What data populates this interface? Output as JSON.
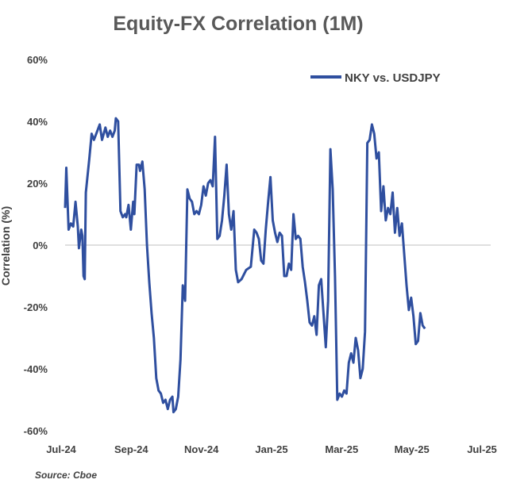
{
  "chart_data": {
    "type": "line",
    "title": "Equity-FX Correlation (1M)",
    "xlabel": "",
    "ylabel": "Correlation (%)",
    "x_tick_labels": [
      "Jul-24",
      "Sep-24",
      "Nov-24",
      "Jan-25",
      "Mar-25",
      "May-25",
      "Jul-25"
    ],
    "y_ticks": [
      -60,
      -40,
      -20,
      0,
      20,
      40,
      60
    ],
    "y_tick_labels": [
      "-60%",
      "-40%",
      "-20%",
      "0%",
      "20%",
      "40%",
      "60%"
    ],
    "ylim": [
      -60,
      60
    ],
    "xlim": [
      "2024-07-01",
      "2025-07-05"
    ],
    "legend_position": "top-right",
    "grid": false,
    "series": [
      {
        "name": "NKY vs. USDJPY",
        "color": "#2F4F9F",
        "points": [
          [
            "2024-07-01",
            12
          ],
          [
            "2024-07-02",
            25
          ],
          [
            "2024-07-04",
            5
          ],
          [
            "2024-07-06",
            7
          ],
          [
            "2024-07-08",
            6
          ],
          [
            "2024-07-10",
            14
          ],
          [
            "2024-07-12",
            6
          ],
          [
            "2024-07-13",
            -1
          ],
          [
            "2024-07-15",
            5
          ],
          [
            "2024-07-16",
            3
          ],
          [
            "2024-07-17",
            -10
          ],
          [
            "2024-07-18",
            -11
          ],
          [
            "2024-07-19",
            17
          ],
          [
            "2024-07-22",
            28
          ],
          [
            "2024-07-24",
            36
          ],
          [
            "2024-07-26",
            34
          ],
          [
            "2024-07-29",
            37
          ],
          [
            "2024-07-31",
            39
          ],
          [
            "2024-08-02",
            34
          ],
          [
            "2024-08-05",
            38
          ],
          [
            "2024-08-07",
            35
          ],
          [
            "2024-08-09",
            37
          ],
          [
            "2024-08-11",
            35
          ],
          [
            "2024-08-13",
            37
          ],
          [
            "2024-08-14",
            41
          ],
          [
            "2024-08-16",
            40
          ],
          [
            "2024-08-18",
            11
          ],
          [
            "2024-08-20",
            9
          ],
          [
            "2024-08-22",
            10
          ],
          [
            "2024-08-23",
            9
          ],
          [
            "2024-08-25",
            13
          ],
          [
            "2024-08-27",
            5
          ],
          [
            "2024-08-29",
            14
          ],
          [
            "2024-08-30",
            10
          ],
          [
            "2024-09-01",
            26
          ],
          [
            "2024-09-03",
            26
          ],
          [
            "2024-09-04",
            24
          ],
          [
            "2024-09-06",
            27
          ],
          [
            "2024-09-08",
            18
          ],
          [
            "2024-09-10",
            0
          ],
          [
            "2024-09-12",
            -12
          ],
          [
            "2024-09-14",
            -22
          ],
          [
            "2024-09-16",
            -30
          ],
          [
            "2024-09-18",
            -43
          ],
          [
            "2024-09-20",
            -47
          ],
          [
            "2024-09-22",
            -48
          ],
          [
            "2024-09-24",
            -51
          ],
          [
            "2024-09-26",
            -50
          ],
          [
            "2024-09-28",
            -53
          ],
          [
            "2024-09-30",
            -50
          ],
          [
            "2024-10-02",
            -49
          ],
          [
            "2024-10-03",
            -54
          ],
          [
            "2024-10-05",
            -53
          ],
          [
            "2024-10-07",
            -49
          ],
          [
            "2024-10-09",
            -37
          ],
          [
            "2024-10-11",
            -13
          ],
          [
            "2024-10-13",
            -18
          ],
          [
            "2024-10-15",
            18
          ],
          [
            "2024-10-17",
            15
          ],
          [
            "2024-10-19",
            14
          ],
          [
            "2024-10-21",
            10
          ],
          [
            "2024-10-23",
            11
          ],
          [
            "2024-10-25",
            10
          ],
          [
            "2024-10-27",
            13
          ],
          [
            "2024-10-29",
            19
          ],
          [
            "2024-10-31",
            16
          ],
          [
            "2024-11-02",
            20
          ],
          [
            "2024-11-04",
            21
          ],
          [
            "2024-11-06",
            19
          ],
          [
            "2024-11-08",
            35
          ],
          [
            "2024-11-10",
            2
          ],
          [
            "2024-11-12",
            3
          ],
          [
            "2024-11-14",
            8
          ],
          [
            "2024-11-16",
            16
          ],
          [
            "2024-11-18",
            26
          ],
          [
            "2024-11-20",
            10
          ],
          [
            "2024-11-22",
            5
          ],
          [
            "2024-11-24",
            11
          ],
          [
            "2024-11-26",
            -8
          ],
          [
            "2024-11-28",
            -12
          ],
          [
            "2024-12-01",
            -11
          ],
          [
            "2024-12-05",
            -8
          ],
          [
            "2024-12-09",
            -7
          ],
          [
            "2024-12-12",
            5
          ],
          [
            "2024-12-14",
            4
          ],
          [
            "2024-12-16",
            2
          ],
          [
            "2024-12-18",
            -5
          ],
          [
            "2024-12-20",
            -6
          ],
          [
            "2024-12-22",
            5
          ],
          [
            "2024-12-24",
            14
          ],
          [
            "2024-12-26",
            22
          ],
          [
            "2024-12-28",
            8
          ],
          [
            "2024-12-30",
            4
          ],
          [
            "2025-01-01",
            1
          ],
          [
            "2025-01-03",
            4
          ],
          [
            "2025-01-05",
            3
          ],
          [
            "2025-01-07",
            -10
          ],
          [
            "2025-01-09",
            -10
          ],
          [
            "2025-01-11",
            -6
          ],
          [
            "2025-01-13",
            -8
          ],
          [
            "2025-01-15",
            10
          ],
          [
            "2025-01-17",
            2
          ],
          [
            "2025-01-19",
            3
          ],
          [
            "2025-01-21",
            2
          ],
          [
            "2025-01-23",
            -7
          ],
          [
            "2025-01-25",
            -12
          ],
          [
            "2025-01-27",
            -18
          ],
          [
            "2025-01-29",
            -25
          ],
          [
            "2025-01-31",
            -26
          ],
          [
            "2025-02-02",
            -23
          ],
          [
            "2025-02-04",
            -29
          ],
          [
            "2025-02-06",
            -13
          ],
          [
            "2025-02-08",
            -11
          ],
          [
            "2025-02-10",
            -22
          ],
          [
            "2025-02-12",
            -33
          ],
          [
            "2025-02-14",
            -18
          ],
          [
            "2025-02-16",
            31
          ],
          [
            "2025-02-18",
            18
          ],
          [
            "2025-02-20",
            -10
          ],
          [
            "2025-02-22",
            -50
          ],
          [
            "2025-02-24",
            -48
          ],
          [
            "2025-02-26",
            -49
          ],
          [
            "2025-02-28",
            -47
          ],
          [
            "2025-03-02",
            -48
          ],
          [
            "2025-03-04",
            -38
          ],
          [
            "2025-03-06",
            -35
          ],
          [
            "2025-03-08",
            -38
          ],
          [
            "2025-03-10",
            -30
          ],
          [
            "2025-03-12",
            -34
          ],
          [
            "2025-03-14",
            -43
          ],
          [
            "2025-03-16",
            -40
          ],
          [
            "2025-03-18",
            -28
          ],
          [
            "2025-03-20",
            33
          ],
          [
            "2025-03-22",
            34
          ],
          [
            "2025-03-24",
            39
          ],
          [
            "2025-03-26",
            36
          ],
          [
            "2025-03-28",
            28
          ],
          [
            "2025-03-30",
            30
          ],
          [
            "2025-04-01",
            11
          ],
          [
            "2025-04-03",
            19
          ],
          [
            "2025-04-05",
            8
          ],
          [
            "2025-04-07",
            12
          ],
          [
            "2025-04-09",
            10
          ],
          [
            "2025-04-11",
            17
          ],
          [
            "2025-04-13",
            4
          ],
          [
            "2025-04-15",
            12
          ],
          [
            "2025-04-17",
            3
          ],
          [
            "2025-04-19",
            7
          ],
          [
            "2025-04-21",
            -3
          ],
          [
            "2025-04-23",
            -13
          ],
          [
            "2025-04-25",
            -21
          ],
          [
            "2025-04-27",
            -17
          ],
          [
            "2025-04-29",
            -23
          ],
          [
            "2025-05-01",
            -32
          ],
          [
            "2025-05-03",
            -31
          ],
          [
            "2025-05-05",
            -22
          ],
          [
            "2025-05-07",
            -26
          ],
          [
            "2025-05-09",
            -27
          ]
        ]
      }
    ]
  },
  "footer": {
    "source": "Source: Cboe"
  }
}
